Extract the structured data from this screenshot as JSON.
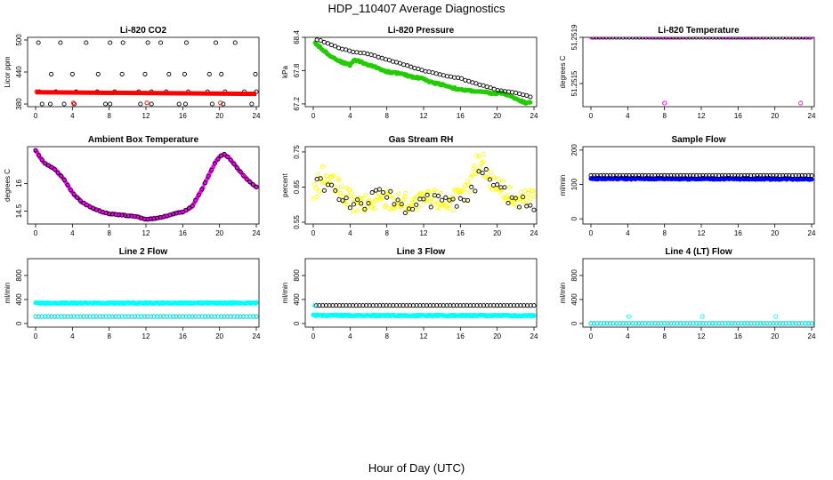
{
  "figure": {
    "title": "HDP_110407  Average Diagnostics",
    "xlabel": "Hour of Day (UTC)"
  },
  "chart_data": [
    {
      "id": "p1",
      "type": "scatter",
      "title": "Li-820 CO2",
      "ylabel": "Licor ppm",
      "xlim": [
        0,
        24
      ],
      "xticks": [
        "0",
        "4",
        "8",
        "12",
        "16",
        "20",
        "24"
      ],
      "ylim": [
        375,
        505
      ],
      "yticks": [
        380,
        440,
        500
      ],
      "series": [
        {
          "kind": "scatter",
          "color": "#000000",
          "fill": "none",
          "x": [
            0.4,
            2.2,
            4.4,
            6.7,
            8.6,
            11.2,
            12.6,
            14.2,
            16.6,
            18.7,
            20.6,
            22.7,
            24,
            1.7,
            4.0,
            6.8,
            9.4,
            11.9,
            14.5,
            16.2,
            18.9,
            20.2,
            23.9,
            0.3,
            2.7,
            5.5,
            8.1,
            9.5,
            12.2,
            13.6,
            16.4,
            19.6,
            21.7,
            0.7,
            1.6,
            3.1,
            4.2,
            7.6,
            8.1,
            11.4,
            12.6,
            15.6,
            16.3,
            19.2,
            20.4,
            23.5
          ],
          "y": [
            403,
            403,
            403,
            403,
            403,
            403,
            403,
            403,
            403,
            403,
            403,
            403,
            403,
            436,
            436,
            436,
            436,
            436,
            436,
            436,
            436,
            436,
            436,
            495,
            495,
            495,
            495,
            495,
            495,
            495,
            495,
            495,
            495,
            380,
            380,
            380,
            380,
            380,
            380,
            380,
            380,
            380,
            380,
            380,
            380,
            380
          ]
        },
        {
          "kind": "band",
          "color": "#ff0000",
          "x": [
            0,
            24
          ],
          "y": [
            402,
            399
          ],
          "width": 5
        },
        {
          "kind": "scatter",
          "color": "#ff0000",
          "fill": "none",
          "x": [
            0.1,
            4.1,
            12.1,
            20.1
          ],
          "y": [
            403,
            382,
            382,
            382
          ]
        }
      ]
    },
    {
      "id": "p2",
      "type": "scatter",
      "title": "Li-820 Pressure",
      "ylabel": "kPa",
      "xlim": [
        0,
        24
      ],
      "xticks": [
        "0",
        "4",
        "8",
        "12",
        "16",
        "20",
        "24"
      ],
      "ylim": [
        67.15,
        68.4
      ],
      "yticks": [
        67.2,
        67.8,
        68.4
      ],
      "series": [
        {
          "kind": "trend",
          "color": "#22cc00",
          "fill": "#22cc00",
          "x": [
            0.2,
            1,
            2,
            3,
            4,
            4.5,
            6,
            7,
            8,
            9,
            10,
            11,
            12,
            12.5,
            14,
            15,
            16,
            17,
            18,
            19,
            19.8,
            20.5,
            22,
            23,
            23.6
          ],
          "y": [
            68.3,
            68.18,
            68.05,
            67.96,
            67.9,
            68.0,
            67.9,
            67.85,
            67.78,
            67.76,
            67.72,
            67.68,
            67.66,
            67.6,
            67.55,
            67.5,
            67.45,
            67.44,
            67.42,
            67.4,
            67.38,
            67.4,
            67.3,
            67.22,
            67.24
          ],
          "n": 180,
          "jitter": 0.015
        },
        {
          "kind": "trend",
          "color": "#000000",
          "fill": "none",
          "x": [
            0.4,
            1,
            2,
            3,
            4,
            6,
            8,
            10,
            12,
            14,
            16,
            18,
            20,
            22,
            23.6
          ],
          "y": [
            68.35,
            68.33,
            68.26,
            68.2,
            68.15,
            68.1,
            68.0,
            67.9,
            67.8,
            67.72,
            67.66,
            67.55,
            67.45,
            67.4,
            67.33
          ],
          "n": 60,
          "jitter": 0.006
        }
      ]
    },
    {
      "id": "p3",
      "type": "scatter",
      "title": "Li-820 Temperature",
      "ylabel": "degrees C",
      "xlim": [
        0,
        24
      ],
      "xticks": [
        "0",
        "4",
        "8",
        "12",
        "16",
        "20",
        "24"
      ],
      "ylim": [
        51.2513,
        51.2519
      ],
      "yticks": [
        51.2515,
        51.2519
      ],
      "series": [
        {
          "kind": "trend",
          "color": "#ff00ff",
          "fill": "none",
          "x": [
            0,
            24
          ],
          "y": [
            51.2519,
            51.2519
          ],
          "n": 70,
          "jitter": 0
        },
        {
          "kind": "trend",
          "color": "#000000",
          "fill": "none",
          "x": [
            0.2,
            23.8
          ],
          "y": [
            51.2519,
            51.2519
          ],
          "n": 66,
          "jitter": 0
        },
        {
          "kind": "scatter",
          "color": "#ff00ff",
          "fill": "none",
          "x": [
            8.0,
            22.8
          ],
          "y": [
            51.25133,
            51.25133
          ]
        }
      ]
    },
    {
      "id": "p4",
      "type": "scatter",
      "title": "Ambient Box Temperature",
      "ylabel": "degrees C",
      "xlim": [
        0,
        24
      ],
      "xticks": [
        "0",
        "4",
        "8",
        "12",
        "16",
        "20",
        "24"
      ],
      "ylim": [
        13.8,
        18.0
      ],
      "yticks": [
        14.5,
        16.0
      ],
      "series": [
        {
          "kind": "trend",
          "color": "#ff00ff",
          "fill": "#ff00ff",
          "x": [
            0,
            0.5,
            1,
            2,
            3,
            4,
            5,
            6,
            7,
            8,
            9,
            10,
            11,
            12,
            13,
            14,
            15,
            16,
            17,
            18,
            19,
            19.5,
            20,
            20.5,
            21,
            22,
            23,
            24
          ],
          "y": [
            17.8,
            17.4,
            17.1,
            16.8,
            16.3,
            15.5,
            15.0,
            14.7,
            14.5,
            14.35,
            14.3,
            14.25,
            14.2,
            14.05,
            14.1,
            14.2,
            14.35,
            14.45,
            14.75,
            15.6,
            16.6,
            17.1,
            17.45,
            17.6,
            17.4,
            16.8,
            16.2,
            15.8
          ],
          "n": 150,
          "jitter": 0.03
        },
        {
          "kind": "trend",
          "color": "#000000",
          "fill": "none",
          "x": [
            0,
            0.5,
            1,
            2,
            3,
            4,
            5,
            6,
            7,
            8,
            9,
            10,
            11,
            12,
            13,
            14,
            15,
            16,
            17,
            18,
            19,
            19.5,
            20,
            20.5,
            21,
            22,
            23,
            24
          ],
          "y": [
            17.8,
            17.4,
            17.1,
            16.8,
            16.3,
            15.5,
            15.0,
            14.7,
            14.5,
            14.35,
            14.3,
            14.25,
            14.2,
            14.05,
            14.1,
            14.2,
            14.35,
            14.45,
            14.75,
            15.6,
            16.6,
            17.1,
            17.45,
            17.6,
            17.4,
            16.8,
            16.2,
            15.8
          ],
          "n": 70,
          "jitter": 0
        }
      ]
    },
    {
      "id": "p5",
      "type": "scatter",
      "title": "Gas Stream RH",
      "ylabel": "percent",
      "xlim": [
        0,
        24
      ],
      "xticks": [
        "0",
        "4",
        "8",
        "12",
        "16",
        "20",
        "24"
      ],
      "ylim": [
        0.545,
        0.765
      ],
      "yticks": [
        0.55,
        0.65,
        0.75
      ],
      "series": [
        {
          "kind": "trend",
          "color": "#ffff00",
          "fill": "none",
          "x": [
            0,
            1,
            2,
            3,
            4,
            5,
            6,
            7,
            8,
            9,
            10,
            11,
            12,
            13,
            14,
            15,
            16,
            17,
            17.5,
            18,
            18.5,
            19,
            20,
            21,
            22,
            23,
            24
          ],
          "y": [
            0.63,
            0.68,
            0.66,
            0.64,
            0.61,
            0.6,
            0.6,
            0.61,
            0.62,
            0.61,
            0.61,
            0.6,
            0.61,
            0.62,
            0.61,
            0.61,
            0.62,
            0.65,
            0.7,
            0.73,
            0.72,
            0.68,
            0.66,
            0.63,
            0.61,
            0.62,
            0.63
          ],
          "n": 190,
          "jitter": 0.03
        },
        {
          "kind": "trend",
          "color": "#000000",
          "fill": "none",
          "x": [
            0.4,
            1,
            2,
            3,
            4,
            5,
            6,
            7,
            8,
            9,
            10,
            11,
            12,
            13,
            14,
            15,
            16,
            17,
            18,
            19,
            20,
            21,
            22,
            23,
            24
          ],
          "y": [
            0.67,
            0.66,
            0.65,
            0.62,
            0.61,
            0.6,
            0.61,
            0.62,
            0.63,
            0.61,
            0.6,
            0.6,
            0.61,
            0.6,
            0.61,
            0.6,
            0.6,
            0.63,
            0.68,
            0.68,
            0.66,
            0.63,
            0.61,
            0.6,
            0.61
          ],
          "n": 60,
          "jitter": 0.025
        }
      ]
    },
    {
      "id": "p6",
      "type": "scatter",
      "title": "Sample Flow",
      "ylabel": "ml/min",
      "xlim": [
        0,
        24
      ],
      "xticks": [
        "0",
        "4",
        "8",
        "12",
        "16",
        "20",
        "24"
      ],
      "ylim": [
        -15,
        210
      ],
      "yticks": [
        0,
        100,
        200
      ],
      "series": [
        {
          "kind": "trend",
          "color": "#0000ff",
          "fill": "#0000ff",
          "x": [
            0,
            24
          ],
          "y": [
            117,
            116
          ],
          "n": 220,
          "jitter": 2
        },
        {
          "kind": "trend",
          "color": "#000000",
          "fill": "none",
          "x": [
            0,
            24
          ],
          "y": [
            126,
            126
          ],
          "n": 70,
          "jitter": 0
        }
      ]
    },
    {
      "id": "p7",
      "type": "scatter",
      "title": "Line 2 Flow",
      "ylabel": "ml/min",
      "xlim": [
        0,
        24
      ],
      "xticks": [
        "0",
        "4",
        "8",
        "12",
        "16",
        "20",
        "24"
      ],
      "ylim": [
        -60,
        1080
      ],
      "yticks": [
        0,
        400,
        800
      ],
      "series": [
        {
          "kind": "trend",
          "color": "#00ffff",
          "fill": "#00ffff",
          "x": [
            0,
            24
          ],
          "y": [
            340,
            340
          ],
          "n": 260,
          "jitter": 10
        },
        {
          "kind": "trend",
          "color": "#000000",
          "fill": "none",
          "x": [
            0,
            24
          ],
          "y": [
            115,
            115
          ],
          "n": 70,
          "jitter": 0
        },
        {
          "kind": "trend",
          "color": "#00ffff",
          "fill": "none",
          "x": [
            0,
            24
          ],
          "y": [
            115,
            115
          ],
          "n": 70,
          "jitter": 0
        }
      ]
    },
    {
      "id": "p8",
      "type": "scatter",
      "title": "Line 3 Flow",
      "ylabel": "ml/min",
      "xlim": [
        0,
        24
      ],
      "xticks": [
        "0",
        "4",
        "8",
        "12",
        "16",
        "20",
        "24"
      ],
      "ylim": [
        -60,
        1080
      ],
      "yticks": [
        0,
        400,
        800
      ],
      "series": [
        {
          "kind": "trend",
          "color": "#00ffff",
          "fill": "#00ffff",
          "x": [
            0,
            24
          ],
          "y": [
            135,
            130
          ],
          "n": 260,
          "jitter": 10
        },
        {
          "kind": "trend",
          "color": "#000000",
          "fill": "none",
          "x": [
            0.3,
            24
          ],
          "y": [
            300,
            300
          ],
          "n": 66,
          "jitter": 0
        },
        {
          "kind": "scatter",
          "color": "#00ffff",
          "fill": "none",
          "x": [
            0.1
          ],
          "y": [
            300
          ]
        }
      ]
    },
    {
      "id": "p9",
      "type": "scatter",
      "title": "Line 4 (LT) Flow",
      "ylabel": "ml/min",
      "xlim": [
        0,
        24
      ],
      "xticks": [
        "0",
        "4",
        "8",
        "12",
        "16",
        "20",
        "24"
      ],
      "ylim": [
        -60,
        1080
      ],
      "yticks": [
        0,
        400,
        800
      ],
      "series": [
        {
          "kind": "trend",
          "color": "#000000",
          "fill": "none",
          "x": [
            0,
            24
          ],
          "y": [
            2,
            2
          ],
          "n": 70,
          "jitter": 0
        },
        {
          "kind": "trend",
          "color": "#00ffff",
          "fill": "none",
          "x": [
            0,
            24
          ],
          "y": [
            2,
            2
          ],
          "n": 70,
          "jitter": 0
        },
        {
          "kind": "scatter",
          "color": "#00ffff",
          "fill": "none",
          "x": [
            4.1,
            12.1,
            20.1
          ],
          "y": [
            115,
            115,
            115
          ]
        }
      ]
    }
  ]
}
